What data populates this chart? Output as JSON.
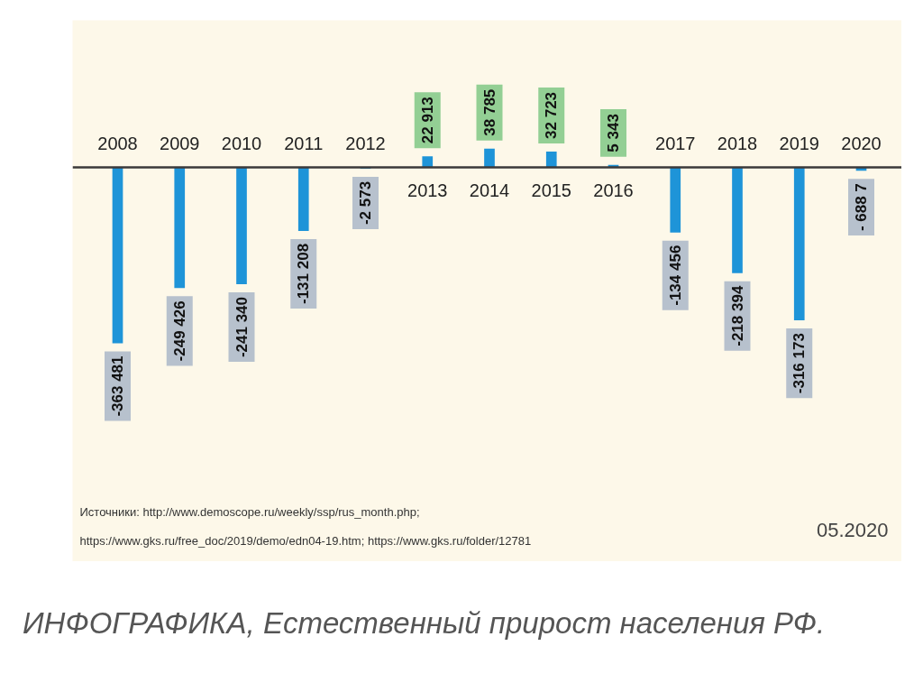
{
  "chart_data": {
    "type": "bar",
    "title": "ИНФОГРАФИКА, Естественный прирост населения РФ.",
    "categories": [
      "2008",
      "2009",
      "2010",
      "2011",
      "2012",
      "2013",
      "2014",
      "2015",
      "2016",
      "2017",
      "2018",
      "2019",
      "2020"
    ],
    "values": [
      -363481,
      -249426,
      -241340,
      -131208,
      -2573,
      22913,
      38785,
      32723,
      5343,
      -134456,
      -218394,
      -316173,
      -6887
    ],
    "value_labels": [
      "-363 481",
      "-249 426",
      "-241 340",
      "-131 208",
      "-2 573",
      "22 913",
      "38 785",
      "32 723",
      "5 343",
      "-134 456",
      "-218 394",
      "-316 173",
      "- 688 7"
    ],
    "color": "#1e94d8",
    "annotations": [
      "Источники: http://www.demoscope.ru/weekly/ssp/rus_month.php;",
      "https://www.gks.ru/free_doc/2019/demo/edn04-19.htm; https://www.gks.ru/folder/12781",
      "05.2020"
    ]
  }
}
